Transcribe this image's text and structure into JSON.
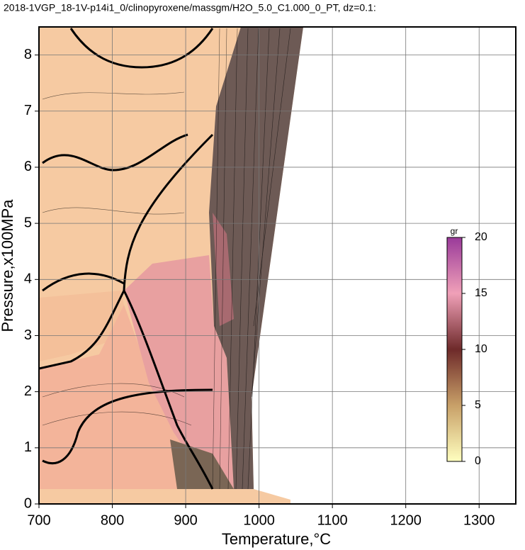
{
  "chart_data": {
    "type": "contour",
    "title": "2018-1VGP_18-1V-p14i1_0/clinopyroxene/massgm/H2O_5.0_C1.000_0_PT, dz=0.1:",
    "x_label": "Temperature,°C",
    "y_label": "Pressure,x100MPa",
    "xlim": [
      700,
      1350
    ],
    "xticks": [
      700,
      800,
      900,
      1000,
      1100,
      1200,
      1300
    ],
    "ylim": [
      0,
      8.5
    ],
    "yticks": [
      0,
      1,
      2,
      3,
      4,
      5,
      6,
      7,
      8
    ],
    "grid": true,
    "colorbar": {
      "label": "gr",
      "lim": [
        0,
        20
      ],
      "ticks": [
        0,
        5,
        10,
        15,
        20
      ],
      "colors": [
        "#ffffbf",
        "#c8a068",
        "#6e2a2a",
        "#f0a0b8",
        "#9a3a9a"
      ]
    }
  }
}
